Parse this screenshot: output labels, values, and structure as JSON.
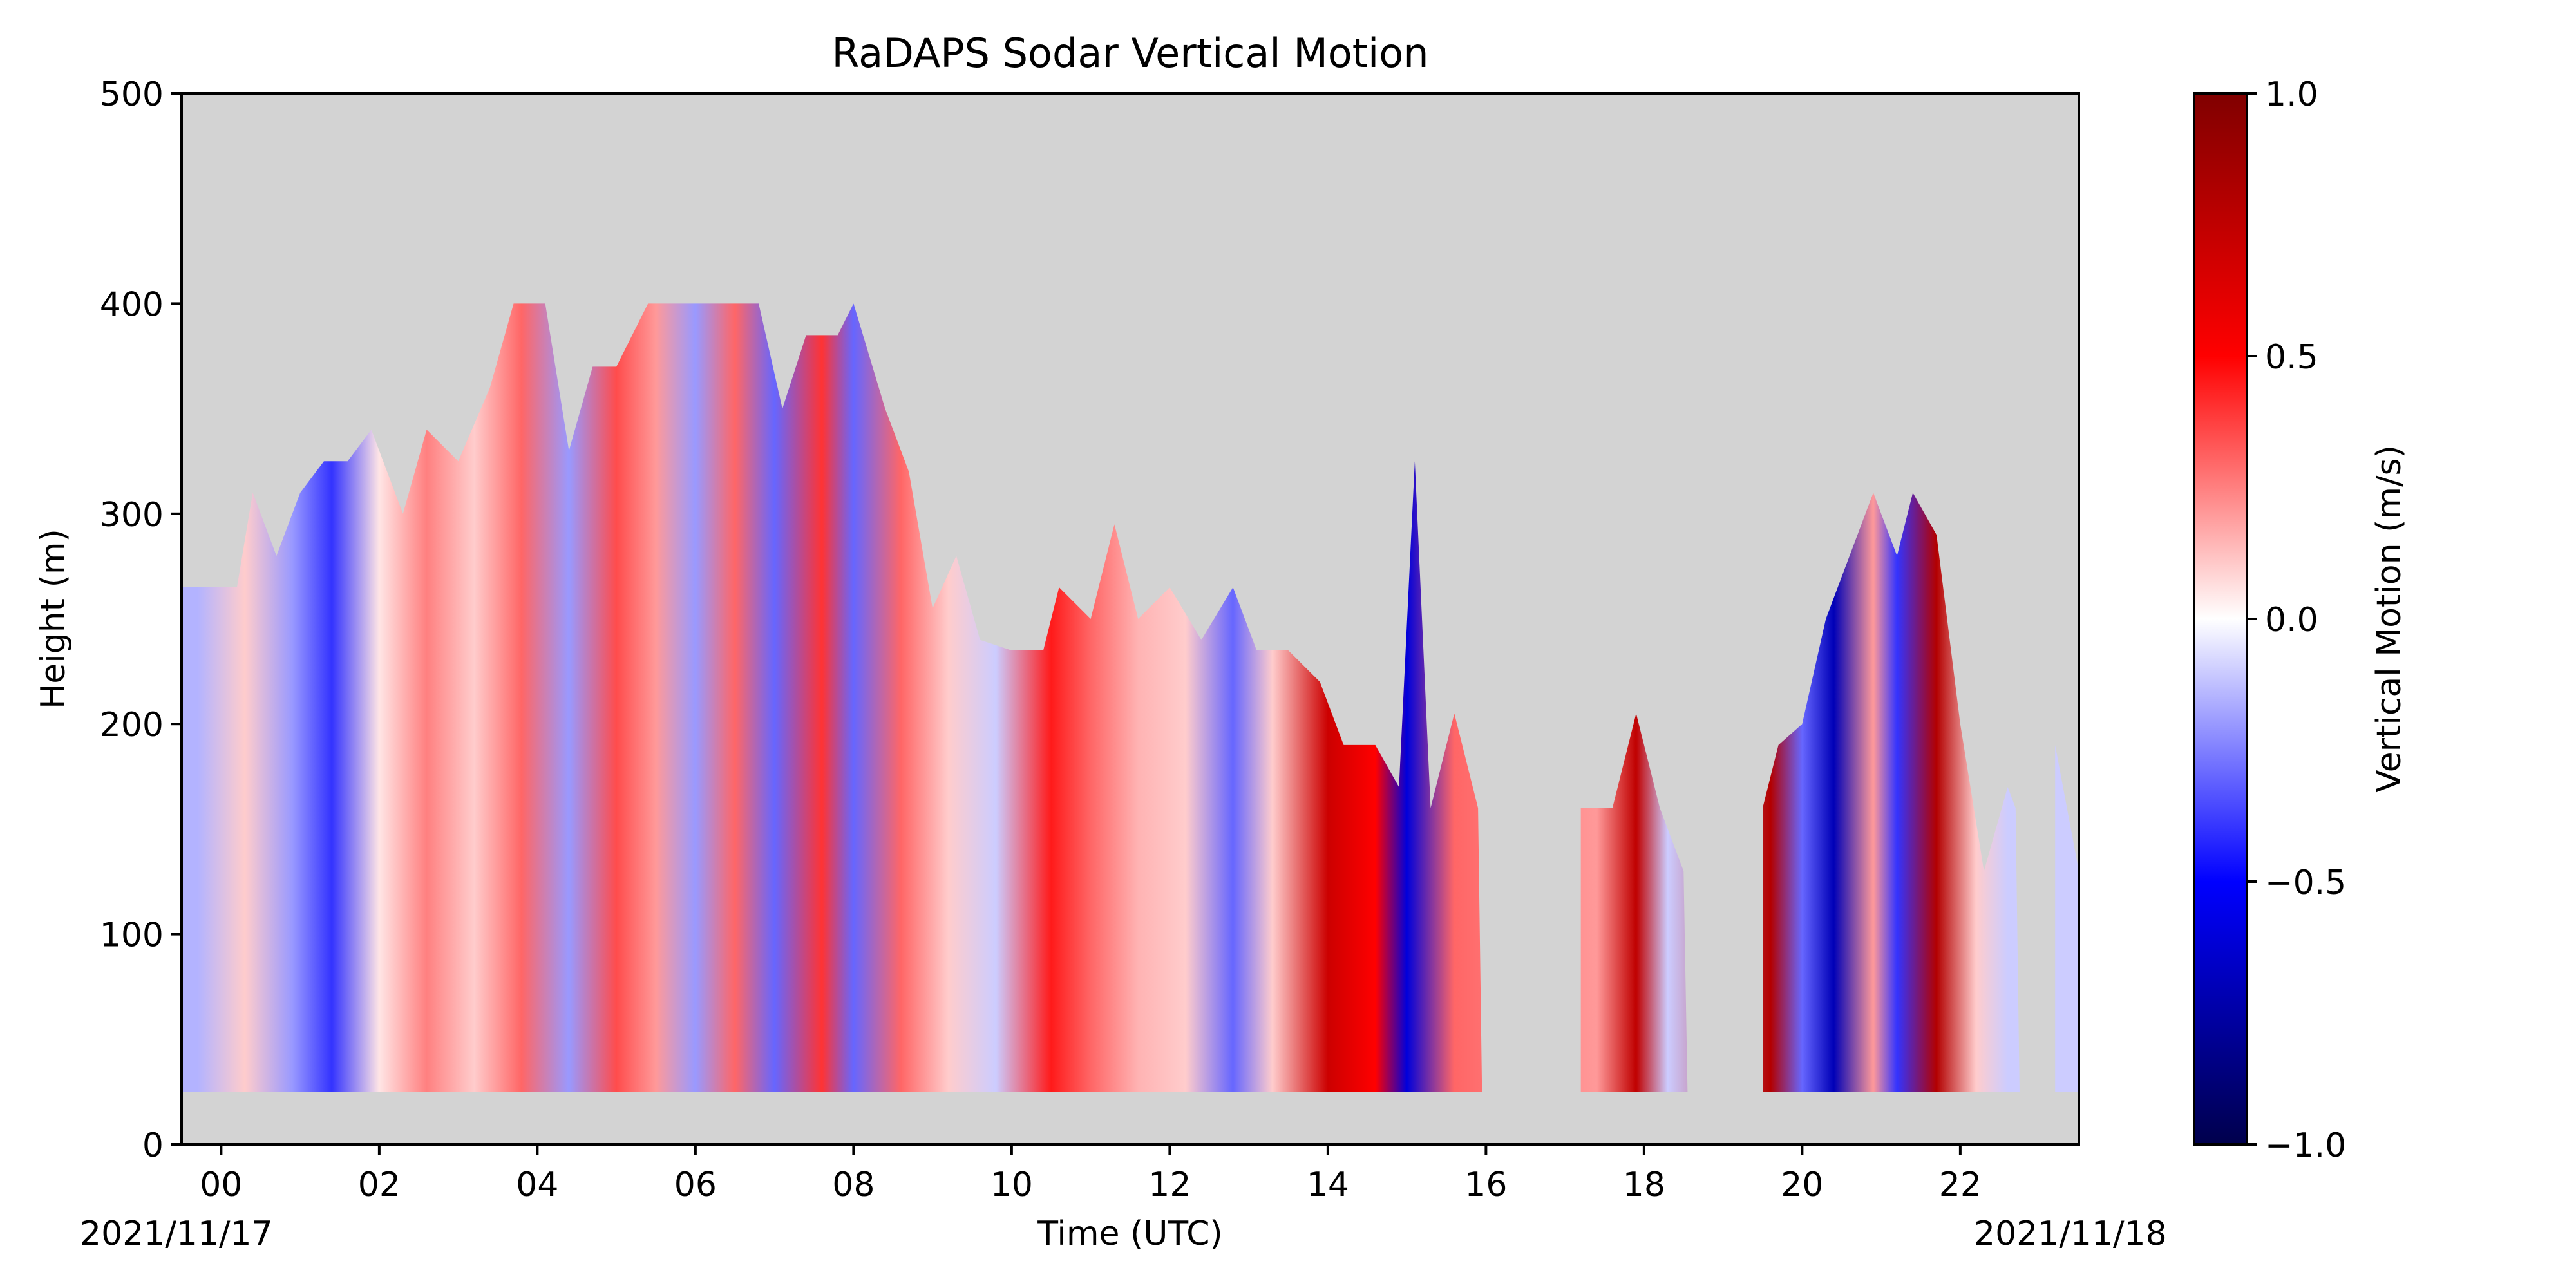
{
  "chart_data": {
    "type": "heatmap",
    "title": "RaDAPS Sodar Vertical Motion",
    "xlabel": "Time (UTC)",
    "ylabel": "Height (m)",
    "xlim": [
      -0.5,
      23.5
    ],
    "ylim": [
      0,
      500
    ],
    "x_ticks": [
      0,
      2,
      4,
      6,
      8,
      10,
      12,
      14,
      16,
      18,
      20,
      22
    ],
    "x_tick_labels": [
      "00",
      "02",
      "04",
      "06",
      "08",
      "10",
      "12",
      "14",
      "16",
      "18",
      "20",
      "22"
    ],
    "y_ticks": [
      0,
      100,
      200,
      300,
      400,
      500
    ],
    "y_tick_labels": [
      "0",
      "100",
      "200",
      "300",
      "400",
      "500"
    ],
    "date_start_label": "2021/11/17",
    "date_end_label": "2021/11/18",
    "background_color": "#d3d3d3",
    "grid": false,
    "colorbar": {
      "label": "Vertical Motion (m/s)",
      "min": -1.0,
      "max": 1.0,
      "ticks": [
        -1.0,
        -0.5,
        0.0,
        0.5,
        1.0
      ],
      "tick_labels": [
        "−1.0",
        "−0.5",
        "0.0",
        "0.5",
        "1.0"
      ],
      "colormap": "seismic",
      "colors": [
        "#00004c",
        "#0000ff",
        "#ffffff",
        "#ff0000",
        "#800000"
      ]
    },
    "data_floor_m": 25,
    "data_profile": [
      {
        "t": -0.5,
        "top": 265
      },
      {
        "t": 0.2,
        "top": 265
      },
      {
        "t": 0.4,
        "top": 310
      },
      {
        "t": 0.7,
        "top": 280
      },
      {
        "t": 1.0,
        "top": 310
      },
      {
        "t": 1.3,
        "top": 325
      },
      {
        "t": 1.6,
        "top": 325
      },
      {
        "t": 1.9,
        "top": 340
      },
      {
        "t": 2.3,
        "top": 300
      },
      {
        "t": 2.6,
        "top": 340
      },
      {
        "t": 3.0,
        "top": 325
      },
      {
        "t": 3.4,
        "top": 360
      },
      {
        "t": 3.7,
        "top": 400
      },
      {
        "t": 4.1,
        "top": 400
      },
      {
        "t": 4.4,
        "top": 330
      },
      {
        "t": 4.7,
        "top": 370
      },
      {
        "t": 5.0,
        "top": 370
      },
      {
        "t": 5.4,
        "top": 400
      },
      {
        "t": 5.9,
        "top": 400
      },
      {
        "t": 6.3,
        "top": 400
      },
      {
        "t": 6.8,
        "top": 400
      },
      {
        "t": 7.1,
        "top": 350
      },
      {
        "t": 7.4,
        "top": 385
      },
      {
        "t": 7.8,
        "top": 385
      },
      {
        "t": 8.0,
        "top": 400
      },
      {
        "t": 8.4,
        "top": 350
      },
      {
        "t": 8.7,
        "top": 320
      },
      {
        "t": 9.0,
        "top": 255
      },
      {
        "t": 9.3,
        "top": 280
      },
      {
        "t": 9.6,
        "top": 240
      },
      {
        "t": 10.0,
        "top": 235
      },
      {
        "t": 10.4,
        "top": 235
      },
      {
        "t": 10.6,
        "top": 265
      },
      {
        "t": 11.0,
        "top": 250
      },
      {
        "t": 11.3,
        "top": 295
      },
      {
        "t": 11.6,
        "top": 250
      },
      {
        "t": 12.0,
        "top": 265
      },
      {
        "t": 12.4,
        "top": 240
      },
      {
        "t": 12.8,
        "top": 265
      },
      {
        "t": 13.1,
        "top": 235
      },
      {
        "t": 13.5,
        "top": 235
      },
      {
        "t": 13.9,
        "top": 220
      },
      {
        "t": 14.2,
        "top": 190
      },
      {
        "t": 14.6,
        "top": 190
      },
      {
        "t": 14.9,
        "top": 170
      },
      {
        "t": 15.1,
        "top": 325
      },
      {
        "t": 15.3,
        "top": 160
      },
      {
        "t": 15.6,
        "top": 205
      },
      {
        "t": 15.9,
        "top": 160
      },
      {
        "t": 15.95,
        "top": 25
      },
      {
        "t": 17.05,
        "top": 25
      },
      {
        "t": 17.2,
        "top": 160
      },
      {
        "t": 17.6,
        "top": 160
      },
      {
        "t": 17.9,
        "top": 205
      },
      {
        "t": 18.2,
        "top": 160
      },
      {
        "t": 18.5,
        "top": 130
      },
      {
        "t": 18.55,
        "top": 25
      },
      {
        "t": 19.3,
        "top": 25
      },
      {
        "t": 19.5,
        "top": 160
      },
      {
        "t": 19.7,
        "top": 190
      },
      {
        "t": 20.0,
        "top": 200
      },
      {
        "t": 20.3,
        "top": 250
      },
      {
        "t": 20.6,
        "top": 280
      },
      {
        "t": 20.9,
        "top": 310
      },
      {
        "t": 21.2,
        "top": 280
      },
      {
        "t": 21.4,
        "top": 310
      },
      {
        "t": 21.7,
        "top": 290
      },
      {
        "t": 22.0,
        "top": 200
      },
      {
        "t": 22.3,
        "top": 130
      },
      {
        "t": 22.6,
        "top": 170
      },
      {
        "t": 22.7,
        "top": 160
      },
      {
        "t": 22.75,
        "top": 25
      },
      {
        "t": 23.1,
        "top": 25
      },
      {
        "t": 23.2,
        "top": 190
      },
      {
        "t": 23.5,
        "top": 130
      }
    ],
    "motion_bands": [
      {
        "t": -0.3,
        "v": -0.15
      },
      {
        "t": 0.3,
        "v": 0.1
      },
      {
        "t": 0.9,
        "v": -0.2
      },
      {
        "t": 1.4,
        "v": -0.4
      },
      {
        "t": 2.0,
        "v": 0.05
      },
      {
        "t": 2.6,
        "v": 0.25
      },
      {
        "t": 3.2,
        "v": 0.1
      },
      {
        "t": 3.8,
        "v": 0.3
      },
      {
        "t": 4.4,
        "v": -0.2
      },
      {
        "t": 5.0,
        "v": 0.35
      },
      {
        "t": 5.5,
        "v": 0.2
      },
      {
        "t": 6.0,
        "v": -0.2
      },
      {
        "t": 6.5,
        "v": 0.3
      },
      {
        "t": 7.0,
        "v": -0.3
      },
      {
        "t": 7.6,
        "v": 0.4
      },
      {
        "t": 8.0,
        "v": -0.3
      },
      {
        "t": 8.6,
        "v": 0.3
      },
      {
        "t": 9.2,
        "v": 0.1
      },
      {
        "t": 9.8,
        "v": -0.1
      },
      {
        "t": 10.5,
        "v": 0.45
      },
      {
        "t": 11.0,
        "v": 0.3
      },
      {
        "t": 11.6,
        "v": 0.15
      },
      {
        "t": 12.2,
        "v": 0.1
      },
      {
        "t": 12.8,
        "v": -0.3
      },
      {
        "t": 13.3,
        "v": 0.1
      },
      {
        "t": 14.0,
        "v": 0.7
      },
      {
        "t": 14.6,
        "v": 0.5
      },
      {
        "t": 15.0,
        "v": -0.6
      },
      {
        "t": 15.6,
        "v": 0.3
      },
      {
        "t": 17.4,
        "v": 0.2
      },
      {
        "t": 17.9,
        "v": 0.75
      },
      {
        "t": 18.3,
        "v": -0.1
      },
      {
        "t": 19.6,
        "v": 0.8
      },
      {
        "t": 20.0,
        "v": -0.3
      },
      {
        "t": 20.4,
        "v": -0.7
      },
      {
        "t": 20.9,
        "v": 0.2
      },
      {
        "t": 21.2,
        "v": -0.4
      },
      {
        "t": 21.7,
        "v": 0.8
      },
      {
        "t": 22.2,
        "v": 0.1
      },
      {
        "t": 22.6,
        "v": -0.1
      },
      {
        "t": 23.3,
        "v": -0.1
      }
    ]
  }
}
